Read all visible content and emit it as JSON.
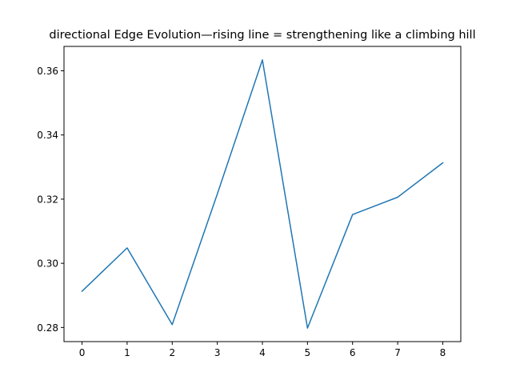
{
  "chart_data": {
    "type": "line",
    "title": "directional Edge Evolution—rising line = strengthening like a climbing hill",
    "xlabel": "",
    "ylabel": "",
    "x": [
      0,
      1,
      2,
      3,
      4,
      5,
      6,
      7,
      8
    ],
    "series": [
      {
        "values": [
          0.2913,
          0.3048,
          0.2809,
          0.3216,
          0.3634,
          0.2798,
          0.3152,
          0.3206,
          0.3313
        ],
        "color": "#1f77b4"
      }
    ],
    "xlim": [
      -0.4,
      8.4
    ],
    "ylim": [
      0.2756,
      0.3676
    ],
    "xticks": [
      0,
      1,
      2,
      3,
      4,
      5,
      6,
      7,
      8
    ],
    "xtick_labels": [
      "0",
      "1",
      "2",
      "3",
      "4",
      "5",
      "6",
      "7",
      "8"
    ],
    "yticks": [
      0.28,
      0.3,
      0.32,
      0.34,
      0.36
    ],
    "ytick_labels": [
      "0.28",
      "0.30",
      "0.32",
      "0.34",
      "0.36"
    ],
    "grid": false,
    "legend": "none"
  }
}
